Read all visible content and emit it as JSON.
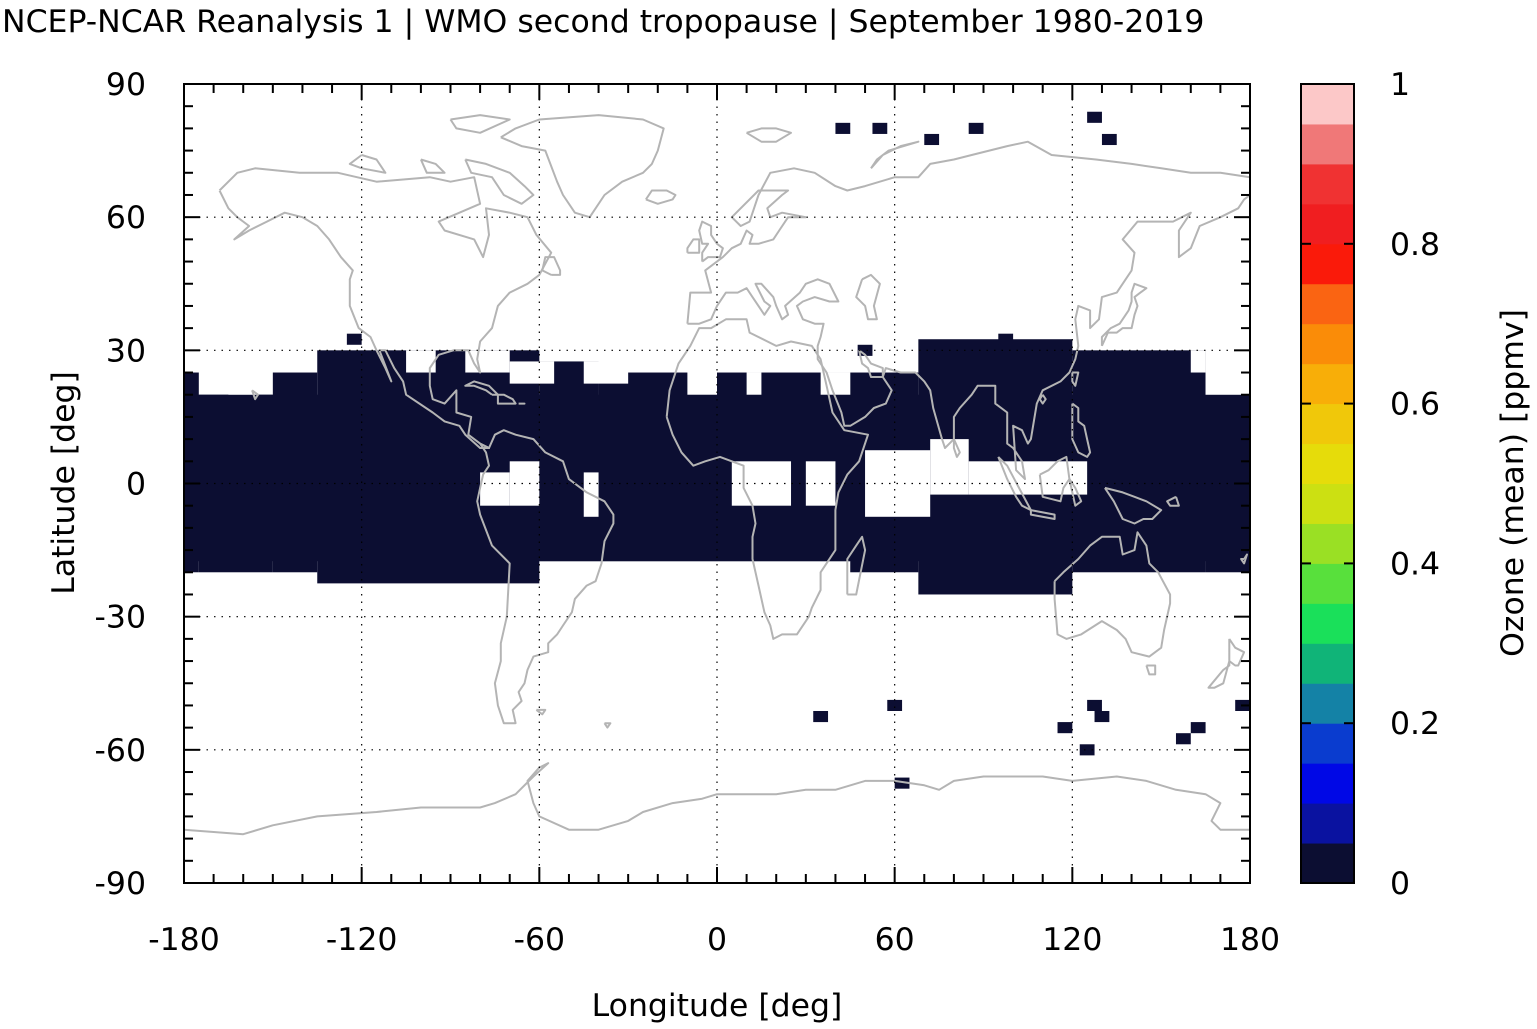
{
  "chart_data": {
    "type": "heatmap",
    "title": "NCEP-NCAR Reanalysis 1 | WMO second tropopause | September 1980-2019",
    "xlabel": "Longitude [deg]",
    "ylabel": "Latitude [deg]",
    "xlim": [
      -180,
      180
    ],
    "ylim": [
      -90,
      90
    ],
    "x_ticks": [
      "-180",
      "-120",
      "-60",
      "0",
      "60",
      "120",
      "180"
    ],
    "y_ticks": [
      "90",
      "60",
      "30",
      "0",
      "-30",
      "-60",
      "-90"
    ],
    "grid": true,
    "colorbar": {
      "label": "Ozone (mean) [ppmv]",
      "range": [
        0,
        1
      ],
      "ticks": [
        "0",
        "0.2",
        "0.4",
        "0.6",
        "0.8",
        "1"
      ],
      "colors": [
        "#0c0e32",
        "#0a12a0",
        "#0008e6",
        "#0a3ccf",
        "#1482a6",
        "#10b478",
        "#1ae05a",
        "#58e03c",
        "#9ae024",
        "#cce012",
        "#e6dc0a",
        "#f0c80a",
        "#f8ae08",
        "#fa8c08",
        "#fa6412",
        "#fa1a0a",
        "#f01e20",
        "#f03232",
        "#f07878",
        "#fcc8c8"
      ]
    },
    "cell_size_deg": [
      5,
      2.5
    ],
    "dominant_value": "0 (lowest colour bin)",
    "field_regions": [
      {
        "lon": [
          -180,
          -175
        ],
        "lat": [
          -20,
          25
        ],
        "value": 0
      },
      {
        "lon": [
          -175,
          -150
        ],
        "lat": [
          -20,
          20
        ],
        "value": 0
      },
      {
        "lon": [
          -150,
          -135
        ],
        "lat": [
          -20,
          25
        ],
        "value": 0
      },
      {
        "lon": [
          -135,
          -60
        ],
        "lat": [
          -22.5,
          30
        ],
        "value": 0
      },
      {
        "lon": [
          -60,
          -40
        ],
        "lat": [
          -17.5,
          27.5
        ],
        "value": 0
      },
      {
        "lon": [
          -40,
          0
        ],
        "lat": [
          -17.5,
          25
        ],
        "value": 0
      },
      {
        "lon": [
          0,
          45
        ],
        "lat": [
          -17.5,
          25
        ],
        "value": 0
      },
      {
        "lon": [
          45,
          68
        ],
        "lat": [
          -20,
          25
        ],
        "value": 0
      },
      {
        "lon": [
          68,
          120
        ],
        "lat": [
          -25,
          32.5
        ],
        "value": 0
      },
      {
        "lon": [
          120,
          165
        ],
        "lat": [
          -20,
          30
        ],
        "value": 0
      },
      {
        "lon": [
          165,
          180
        ],
        "lat": [
          -20,
          20
        ],
        "value": 0
      },
      {
        "lon": [
          -180,
          180
        ],
        "lat": [
          -17.5,
          20
        ],
        "value": 0
      }
    ],
    "no_data_holes": [
      {
        "lon": [
          5,
          25
        ],
        "lat": [
          -5,
          5
        ]
      },
      {
        "lon": [
          30,
          40
        ],
        "lat": [
          -5,
          5
        ]
      },
      {
        "lon": [
          50,
          72
        ],
        "lat": [
          -7.5,
          7.5
        ]
      },
      {
        "lon": [
          72,
          85
        ],
        "lat": [
          -2.5,
          10
        ]
      },
      {
        "lon": [
          85,
          125
        ],
        "lat": [
          -2.5,
          5
        ]
      },
      {
        "lon": [
          -80,
          -70
        ],
        "lat": [
          -5,
          2.5
        ]
      },
      {
        "lon": [
          -70,
          -60
        ],
        "lat": [
          -5,
          5
        ]
      },
      {
        "lon": [
          -45,
          -40
        ],
        "lat": [
          -7.5,
          2.5
        ]
      },
      {
        "lon": [
          -165,
          -155
        ],
        "lat": [
          20,
          25
        ]
      },
      {
        "lon": [
          -105,
          -95
        ],
        "lat": [
          25,
          30
        ]
      },
      {
        "lon": [
          -85,
          -70
        ],
        "lat": [
          25,
          30
        ]
      },
      {
        "lon": [
          -70,
          -55
        ],
        "lat": [
          22.5,
          27.5
        ]
      },
      {
        "lon": [
          -45,
          -30
        ],
        "lat": [
          22.5,
          27.5
        ]
      },
      {
        "lon": [
          -10,
          0
        ],
        "lat": [
          20,
          27.5
        ]
      },
      {
        "lon": [
          10,
          15
        ],
        "lat": [
          20,
          25
        ]
      },
      {
        "lon": [
          35,
          45
        ],
        "lat": [
          20,
          25
        ]
      },
      {
        "lon": [
          160,
          165
        ],
        "lat": [
          25,
          30
        ]
      },
      {
        "lon": [
          165,
          180
        ],
        "lat": [
          20,
          25
        ]
      }
    ],
    "isolated_cells": [
      {
        "lon": -122.5,
        "lat": 32.5,
        "value": 0
      },
      {
        "lon": 97.5,
        "lat": 32.5,
        "value": 0
      },
      {
        "lon": 50,
        "lat": 30,
        "value": 0
      },
      {
        "lon": 42.5,
        "lat": 80,
        "value": 0
      },
      {
        "lon": 55,
        "lat": 80,
        "value": 0
      },
      {
        "lon": 72.5,
        "lat": 77.5,
        "value": 0
      },
      {
        "lon": 87.5,
        "lat": 80,
        "value": 0
      },
      {
        "lon": 127.5,
        "lat": 82.5,
        "value": 0
      },
      {
        "lon": 132.5,
        "lat": 77.5,
        "value": 0
      },
      {
        "lon": 35,
        "lat": -52.5,
        "value": 0
      },
      {
        "lon": 60,
        "lat": -50,
        "value": 0
      },
      {
        "lon": 62.5,
        "lat": -67.5,
        "value": 0
      },
      {
        "lon": 127.5,
        "lat": -50,
        "value": 0
      },
      {
        "lon": 130,
        "lat": -52.5,
        "value": 0
      },
      {
        "lon": 117.5,
        "lat": -55,
        "value": 0
      },
      {
        "lon": 125,
        "lat": -60,
        "value": 0
      },
      {
        "lon": 162.5,
        "lat": -55,
        "value": 0
      },
      {
        "lon": 157.5,
        "lat": -57.5,
        "value": 0
      },
      {
        "lon": 177.5,
        "lat": -50,
        "value": 0
      }
    ],
    "coastlines_color": "#b4b4b4",
    "no_data_color": "#ffffff"
  }
}
